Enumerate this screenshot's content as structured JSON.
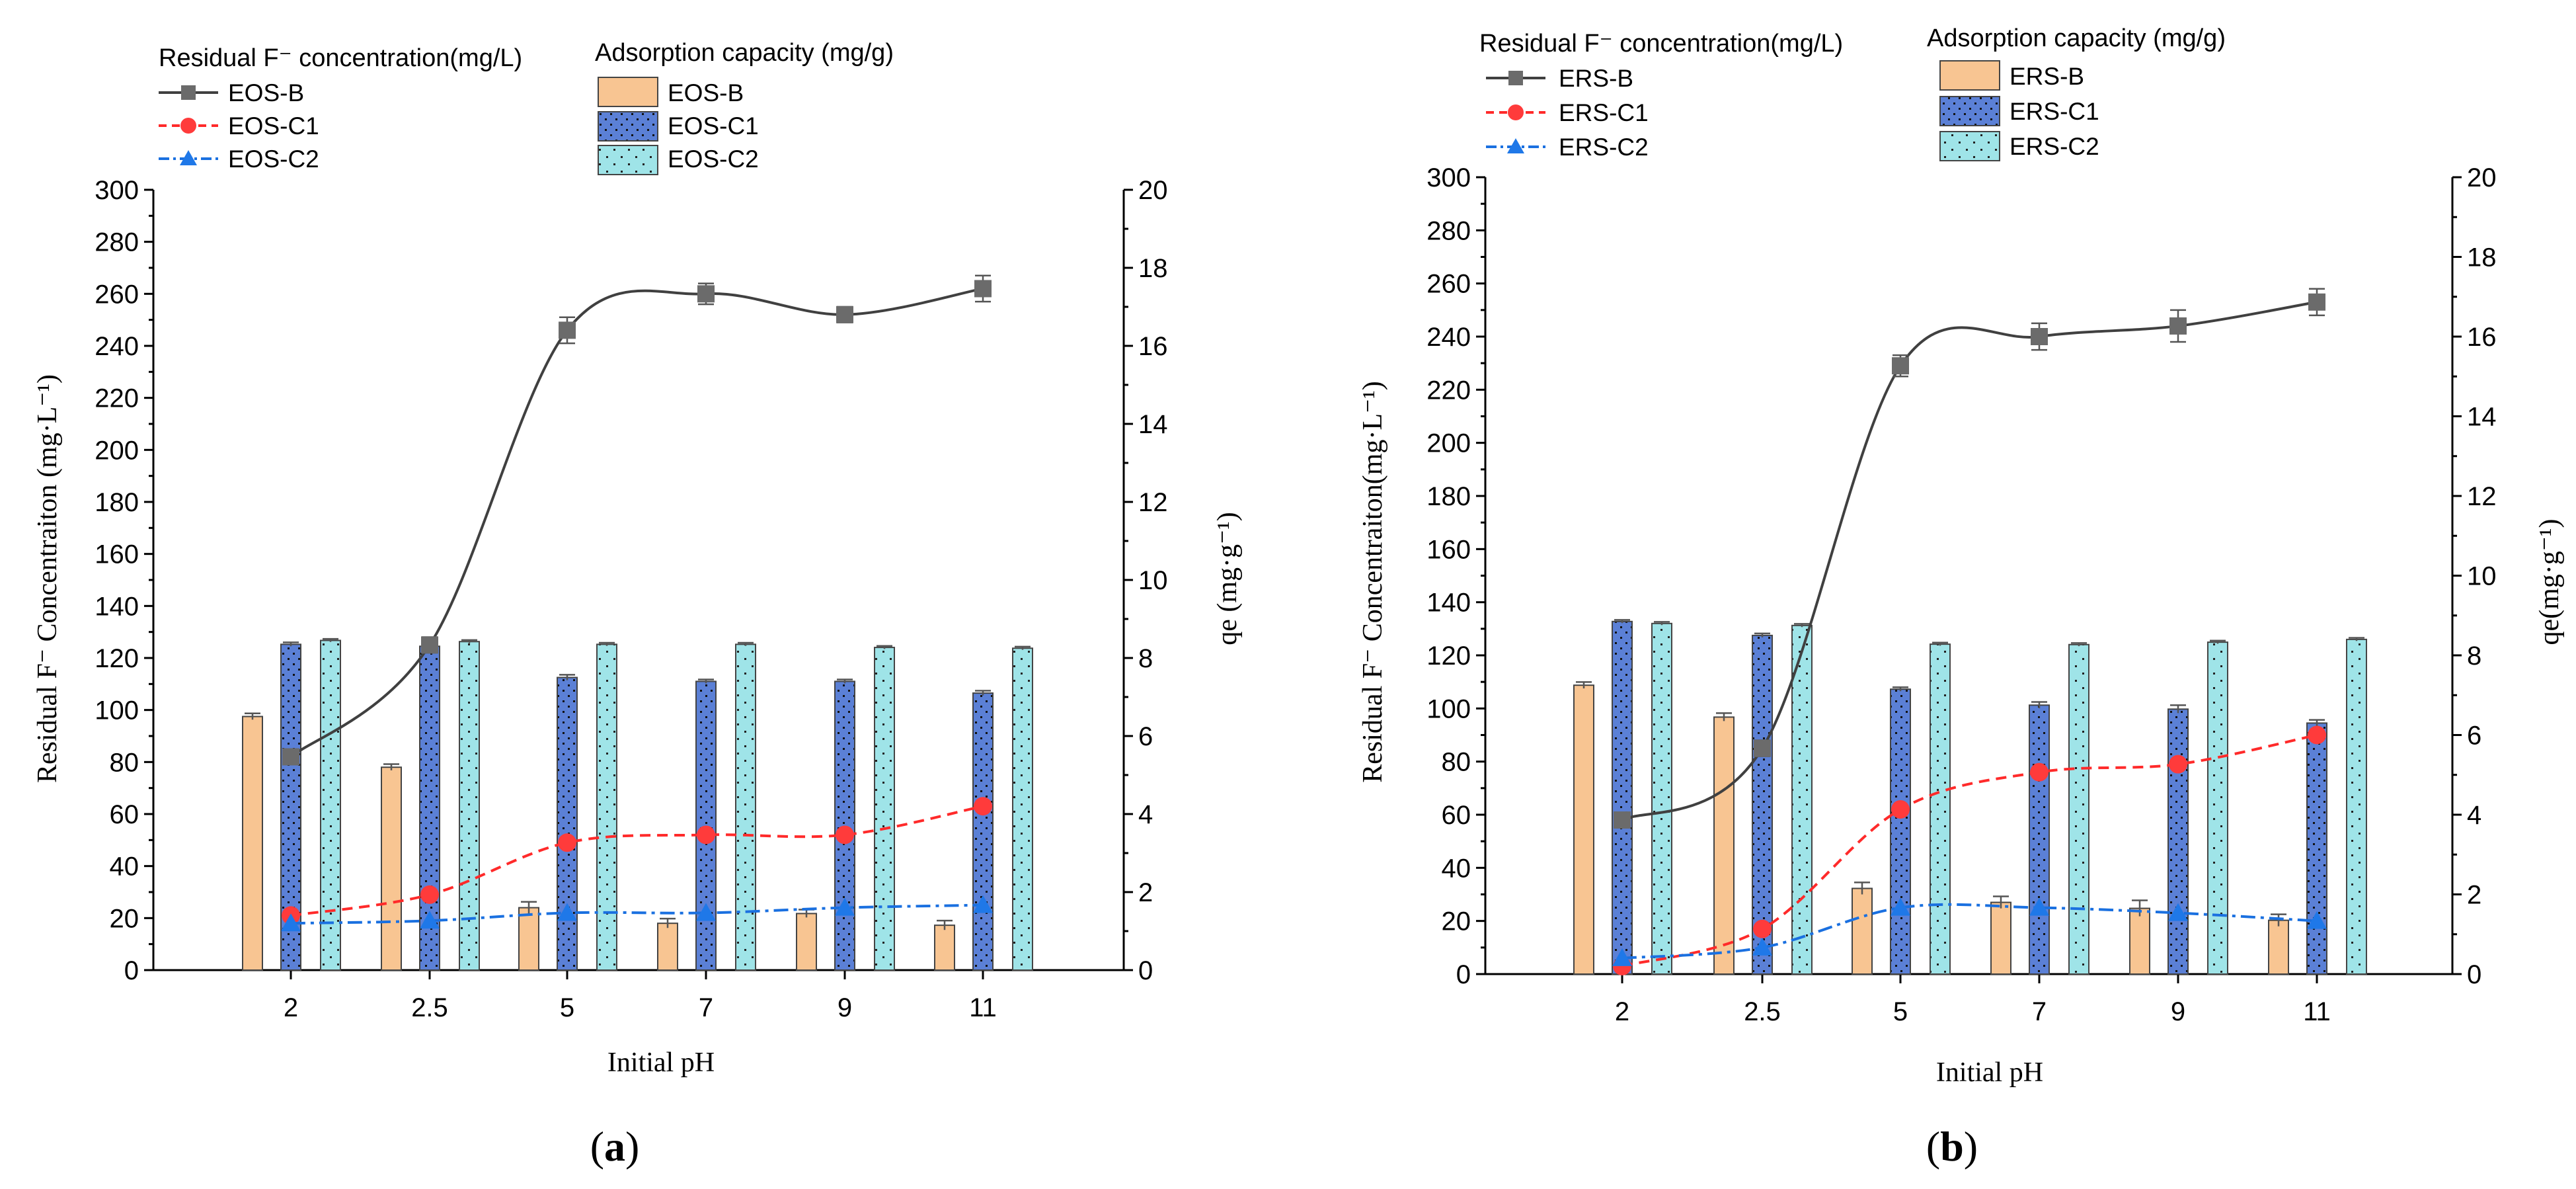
{
  "colors": {
    "bar_B": "#f8c592",
    "bar_C1": "#5b80d6",
    "bar_C2": "#9fe4e8",
    "line_B": "#404040",
    "line_C1": "#ff2a2a",
    "line_C2": "#1a70e0",
    "marker_B": "#6b6b6b",
    "marker_C1": "#ff3b3b",
    "marker_C2": "#1f78e8"
  },
  "chart_data": [
    {
      "type": "bar+line",
      "panel_label": "a",
      "categories": [
        "2",
        "2.5",
        "5",
        "7",
        "9",
        "11"
      ],
      "xlabel": "Initial pH",
      "ylabel_left": "Residual F⁻ Concentraiton (mg·L⁻¹)",
      "ylabel_right": "qe (mg·g⁻¹)",
      "ylim_left": [
        0,
        300
      ],
      "ylim_right": [
        0,
        20
      ],
      "yticks_left": [
        0,
        20,
        40,
        60,
        80,
        100,
        120,
        140,
        160,
        180,
        200,
        220,
        240,
        260,
        280,
        300
      ],
      "yticks_right": [
        0,
        2,
        4,
        6,
        8,
        10,
        12,
        14,
        16,
        18,
        20
      ],
      "legend_lines_title": "Residual F⁻ concentration(mg/L)",
      "legend_bars_title": "Adsorption capacity (mg/g)",
      "line_series": [
        {
          "name": "EOS-B",
          "style": "solid",
          "marker": "square",
          "values": [
            82,
            125,
            246,
            260,
            252,
            262
          ],
          "errors": [
            2,
            3,
            5,
            4,
            3,
            5
          ]
        },
        {
          "name": "EOS-C1",
          "style": "dashed",
          "marker": "circle",
          "values": [
            21,
            29,
            49,
            52,
            52,
            63
          ],
          "errors": [
            0,
            0,
            0,
            0,
            0,
            0
          ]
        },
        {
          "name": "EOS-C2",
          "style": "dashdot",
          "marker": "triangle",
          "values": [
            18,
            19,
            22,
            22,
            24,
            25
          ],
          "errors": [
            0,
            0,
            0,
            0,
            0,
            0
          ]
        }
      ],
      "bar_series": [
        {
          "name": "EOS-B",
          "pattern": "plain",
          "values": [
            6.5,
            5.2,
            1.6,
            1.2,
            1.45,
            1.15
          ],
          "errors": [
            0.08,
            0.08,
            0.15,
            0.12,
            0.1,
            0.12
          ]
        },
        {
          "name": "EOS-C1",
          "pattern": "dots",
          "values": [
            8.35,
            8.3,
            7.5,
            7.4,
            7.4,
            7.1
          ],
          "errors": [
            0.05,
            0.06,
            0.07,
            0.05,
            0.05,
            0.06
          ]
        },
        {
          "name": "EOS-C2",
          "pattern": "dots-sparse",
          "values": [
            8.45,
            8.42,
            8.35,
            8.35,
            8.27,
            8.25
          ],
          "errors": [
            0.04,
            0.04,
            0.04,
            0.04,
            0.04,
            0.04
          ]
        }
      ]
    },
    {
      "type": "bar+line",
      "panel_label": "b",
      "categories": [
        "2",
        "2.5",
        "5",
        "7",
        "9",
        "11"
      ],
      "xlabel": "Initial pH",
      "ylabel_left": "Residual F⁻ Concentraiton(mg·L⁻¹)",
      "ylabel_right": "qe(mg·g⁻¹)",
      "ylim_left": [
        0,
        300
      ],
      "ylim_right": [
        0,
        20
      ],
      "yticks_left": [
        0,
        20,
        40,
        60,
        80,
        100,
        120,
        140,
        160,
        180,
        200,
        220,
        240,
        260,
        280,
        300
      ],
      "yticks_right": [
        0,
        2,
        4,
        6,
        8,
        10,
        12,
        14,
        16,
        18,
        20
      ],
      "legend_lines_title": "Residual F⁻ concentration(mg/L)",
      "legend_bars_title": "Adsorption capacity (mg/g)",
      "line_series": [
        {
          "name": "ERS-B",
          "style": "solid",
          "marker": "square",
          "values": [
            58,
            85,
            229,
            240,
            244,
            253
          ],
          "errors": [
            2,
            3,
            4,
            5,
            6,
            5
          ]
        },
        {
          "name": "ERS-C1",
          "style": "dashed",
          "marker": "circle",
          "values": [
            3,
            17,
            62,
            76,
            79,
            90
          ],
          "errors": [
            0,
            0,
            0,
            0,
            0,
            0
          ]
        },
        {
          "name": "ERS-C2",
          "style": "dashdot",
          "marker": "triangle",
          "values": [
            6,
            10,
            25,
            25,
            23,
            20
          ],
          "errors": [
            0,
            0,
            0,
            0,
            0,
            0
          ]
        }
      ],
      "bar_series": [
        {
          "name": "ERS-B",
          "pattern": "plain",
          "values": [
            7.25,
            6.45,
            2.15,
            1.8,
            1.65,
            1.35
          ],
          "errors": [
            0.08,
            0.1,
            0.15,
            0.15,
            0.2,
            0.15
          ]
        },
        {
          "name": "ERS-C1",
          "pattern": "dots",
          "values": [
            8.85,
            8.5,
            7.15,
            6.75,
            6.65,
            6.3
          ],
          "errors": [
            0.04,
            0.05,
            0.05,
            0.08,
            0.1,
            0.08
          ]
        },
        {
          "name": "ERS-C2",
          "pattern": "dots-sparse",
          "values": [
            8.8,
            8.75,
            8.28,
            8.27,
            8.33,
            8.4
          ],
          "errors": [
            0.04,
            0.04,
            0.04,
            0.04,
            0.04,
            0.04
          ]
        }
      ]
    }
  ]
}
